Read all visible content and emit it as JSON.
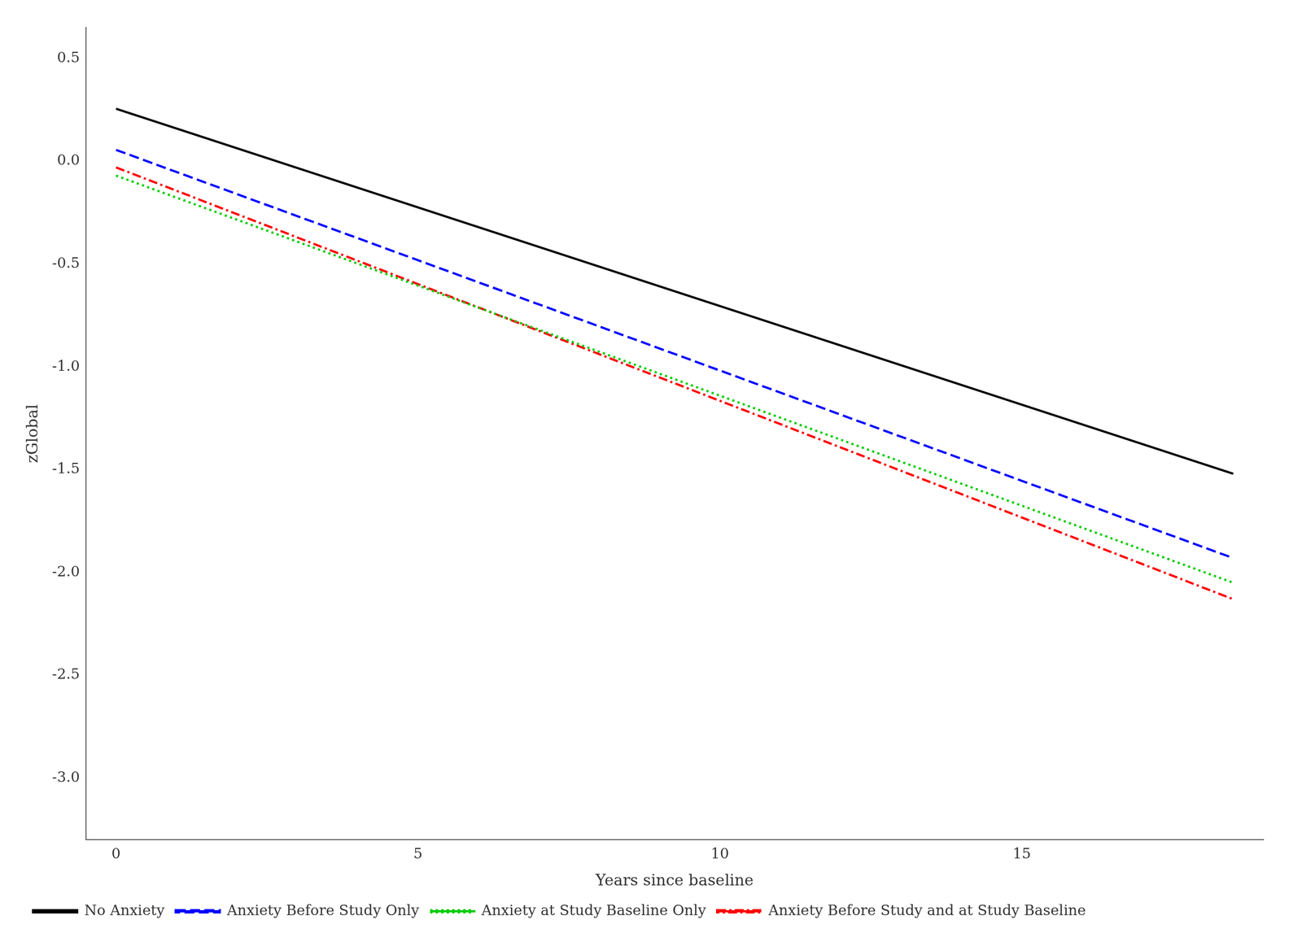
{
  "chart_data": {
    "type": "line",
    "xlabel": "Years since baseline",
    "ylabel": "zGlobal",
    "xlim": [
      -0.5,
      19.0
    ],
    "ylim": [
      -3.3,
      0.65
    ],
    "xticks": [
      0,
      5,
      10,
      15
    ],
    "yticks": [
      0.5,
      {
        "value": 0.0,
        "label": "0.0"
      },
      -0.5,
      {
        "value": -1.0,
        "label": "-1.0"
      },
      -1.5,
      {
        "value": -2.0,
        "label": "-2.0"
      },
      -2.5,
      {
        "value": -3.0,
        "label": "-3.0"
      }
    ],
    "x": [
      0,
      18.5
    ],
    "series": [
      {
        "name": "No Anxiety",
        "color": "#000000",
        "line_style": "solid",
        "values": [
          0.255,
          -1.52
        ]
      },
      {
        "name": "Anxiety Before Study Only",
        "color": "#0000ff",
        "line_style": "dashed",
        "values": [
          0.055,
          -1.93
        ]
      },
      {
        "name": "Anxiety at Study Baseline Only",
        "color": "#00cc00",
        "line_style": "dotted",
        "values": [
          -0.07,
          -2.05
        ]
      },
      {
        "name": "Anxiety Before Study and at Study Baseline",
        "color": "#ff0000",
        "line_style": "dashdot",
        "values": [
          -0.03,
          -2.13
        ]
      }
    ],
    "legend": "lower left",
    "grid": false
  }
}
